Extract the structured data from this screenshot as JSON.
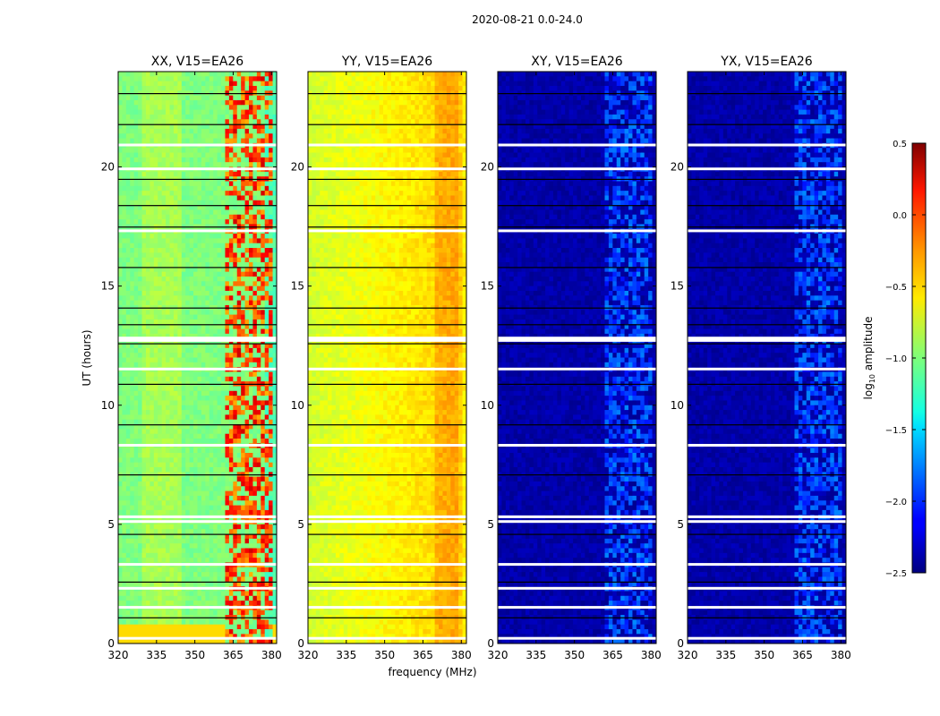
{
  "figure": {
    "title": "2020-08-21 0.0-24.0"
  },
  "chart_data": {
    "type": "heatmap",
    "xlabel": "frequency (MHz)",
    "ylabel": "UT (hours)",
    "x_range": [
      320,
      382
    ],
    "y_range": [
      0,
      24
    ],
    "x_ticks": [
      320,
      335,
      350,
      365,
      380
    ],
    "y_ticks": [
      0,
      5,
      10,
      15,
      20
    ],
    "panels": [
      {
        "title": "XX, V15=EA26",
        "pol": "XX",
        "level_base": 0.5,
        "level_rfi": 0.92
      },
      {
        "title": "YY, V15=EA26",
        "pol": "YY",
        "level_base": 0.62,
        "level_rfi": 0.62
      },
      {
        "title": "XY, V15=EA26",
        "pol": "XY",
        "level_base": 0.04,
        "level_rfi": 0.2
      },
      {
        "title": "YX, V15=EA26",
        "pol": "YX",
        "level_base": 0.04,
        "level_rfi": 0.2
      }
    ],
    "rfi_band_mhz": [
      362,
      380
    ],
    "flagged_hours_white": [
      0.2,
      1.5,
      2.3,
      3.3,
      5.1,
      5.3,
      8.3,
      11.5,
      12.7,
      12.8,
      17.3,
      19.9,
      20.9
    ],
    "gap_lines_hours_black": [
      1.1,
      2.6,
      4.6,
      7.1,
      9.2,
      10.9,
      12.6,
      13.4,
      14.1,
      15.8,
      17.5,
      18.4,
      19.5,
      21.8,
      23.1
    ],
    "colorbar": {
      "label": "log",
      "label_sub": "10",
      "label_rest": " amplitude",
      "range": [
        -2.5,
        0.5
      ],
      "ticks": [
        "0.5",
        "0.0",
        "−0.5",
        "−1.0",
        "−1.5",
        "−2.0",
        "−2.5"
      ],
      "colormap": "jet"
    }
  }
}
